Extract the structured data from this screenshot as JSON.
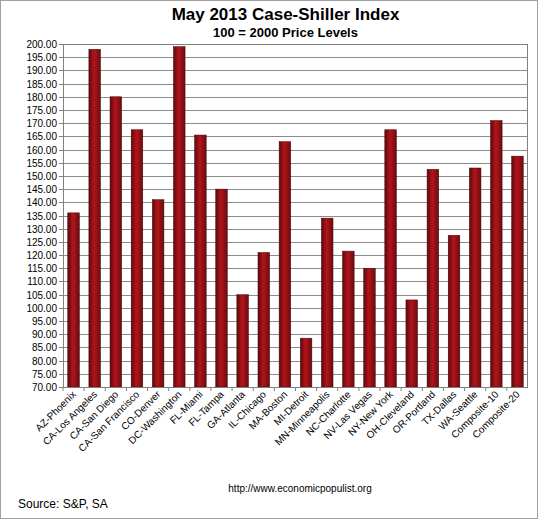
{
  "chart_data": {
    "type": "bar",
    "title": "May 2013 Case-Shiller Index",
    "subtitle": "100 = 2000 Price Levels",
    "categories": [
      "AZ-Phoenix",
      "CA-Los Angeles",
      "CA-San Diego",
      "CA-San Francisco",
      "CO-Denver",
      "DC-Washington",
      "FL-Miami",
      "FL-Tampa",
      "GA-Atlanta",
      "IL-Chicago",
      "MA-Boston",
      "MI-Detroit",
      "MN-Minneapolis",
      "NC-Charlotte",
      "NV-Las Vegas",
      "NY-New York",
      "OH-Cleveland",
      "OR-Portland",
      "TX-Dallas",
      "WA-Seattle",
      "Composite-10",
      "Composite-20"
    ],
    "values": [
      136,
      198,
      180,
      167.5,
      141,
      199,
      165.5,
      145,
      105,
      121,
      163,
      88.5,
      134,
      121.5,
      115,
      167.5,
      103,
      152.5,
      127.5,
      153,
      171,
      157.5
    ],
    "color": "#b3141a",
    "ylim": [
      70,
      200
    ],
    "yticks": [
      {
        "value": 70,
        "label": "70.00"
      },
      {
        "value": 75,
        "label": "75.00"
      },
      {
        "value": 80,
        "label": "80.00"
      },
      {
        "value": 85,
        "label": "85.00"
      },
      {
        "value": 90,
        "label": "90.00"
      },
      {
        "value": 95,
        "label": "95.00"
      },
      {
        "value": 100,
        "label": "100.00"
      },
      {
        "value": 105,
        "label": "105.00"
      },
      {
        "value": 110,
        "label": "110.00"
      },
      {
        "value": 115,
        "label": "115.00"
      },
      {
        "value": 120,
        "label": "120.00"
      },
      {
        "value": 125,
        "label": "125.00"
      },
      {
        "value": 130,
        "label": "130.00"
      },
      {
        "value": 135,
        "label": "135.00"
      },
      {
        "value": 140,
        "label": "140.00"
      },
      {
        "value": 145,
        "label": "145.00"
      },
      {
        "value": 150,
        "label": "150.00"
      },
      {
        "value": 155,
        "label": "155.00"
      },
      {
        "value": 160,
        "label": "160.00"
      },
      {
        "value": 165,
        "label": "165.00"
      },
      {
        "value": 170,
        "label": "170.00"
      },
      {
        "value": 175,
        "label": "175.00"
      },
      {
        "value": 180,
        "label": "180.00"
      },
      {
        "value": 185,
        "label": "185.00"
      },
      {
        "value": 190,
        "label": "190.00"
      },
      {
        "value": 195,
        "label": "195.00"
      },
      {
        "value": 200,
        "label": "200.00"
      }
    ],
    "grid": true,
    "annotations": [
      "Source: S&P, SA",
      "http://www.economicpopulist.org"
    ]
  }
}
